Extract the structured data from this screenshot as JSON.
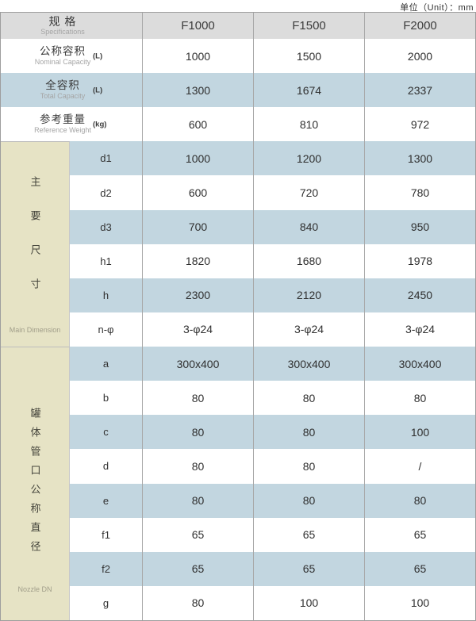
{
  "page": {
    "unit_note": "单位（Unit）：mm"
  },
  "table": {
    "header": {
      "spec_label_cn": "规 格",
      "spec_label_en": "Specifications",
      "models": [
        "F1000",
        "F1500",
        "F2000"
      ]
    },
    "capacity_rows": [
      {
        "label_cn": "公称容积",
        "label_en": "Nominal Capacity",
        "unit": "(L)",
        "values": [
          "1000",
          "1500",
          "2000"
        ]
      },
      {
        "label_cn": "全容积",
        "label_en": "Total Capacity",
        "unit": "(L)",
        "values": [
          "1300",
          "1674",
          "2337"
        ]
      },
      {
        "label_cn": "参考重量",
        "label_en": "Reference Weight",
        "unit": "(kg)",
        "values": [
          "600",
          "810",
          "972"
        ]
      }
    ],
    "groups": [
      {
        "label_cn": "主要尺寸",
        "label_en": "Main Dimension",
        "rows": [
          {
            "param": "d1",
            "values": [
              "1000",
              "1200",
              "1300"
            ]
          },
          {
            "param": "d2",
            "values": [
              "600",
              "720",
              "780"
            ]
          },
          {
            "param": "d3",
            "values": [
              "700",
              "840",
              "950"
            ]
          },
          {
            "param": "h1",
            "values": [
              "1820",
              "1680",
              "1978"
            ]
          },
          {
            "param": "h",
            "values": [
              "2300",
              "2120",
              "2450"
            ]
          },
          {
            "param": "n-φ",
            "values": [
              "3-φ24",
              "3-φ24",
              "3-φ24"
            ]
          }
        ]
      },
      {
        "label_cn": "罐体管口公称直径",
        "label_en": "Nozzle DN",
        "rows": [
          {
            "param": "a",
            "values": [
              "300x400",
              "300x400",
              "300x400"
            ]
          },
          {
            "param": "b",
            "values": [
              "80",
              "80",
              "80"
            ]
          },
          {
            "param": "c",
            "values": [
              "80",
              "80",
              "100"
            ]
          },
          {
            "param": "d",
            "values": [
              "80",
              "80",
              "/"
            ]
          },
          {
            "param": "e",
            "values": [
              "80",
              "80",
              "80"
            ]
          },
          {
            "param": "f1",
            "values": [
              "65",
              "65",
              "65"
            ]
          },
          {
            "param": "f2",
            "values": [
              "65",
              "65",
              "65"
            ]
          },
          {
            "param": "g",
            "values": [
              "80",
              "100",
              "100"
            ]
          }
        ]
      }
    ],
    "colors": {
      "header_bg": "#dcdcdc",
      "row_highlight_blue": "#c2d6e0",
      "group_column_beige": "#e6e3c5",
      "border_gray": "#9e9e9e"
    }
  }
}
